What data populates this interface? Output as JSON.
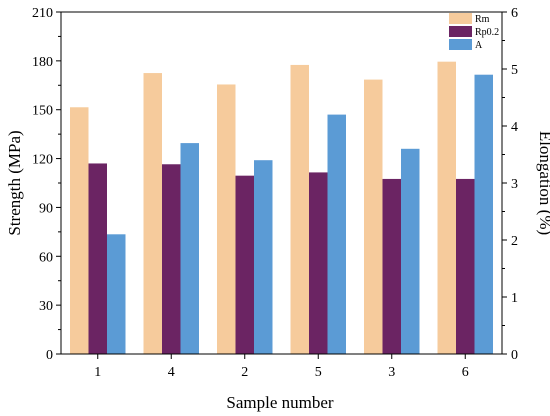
{
  "chart_data": {
    "type": "bar",
    "categories": [
      "1",
      "4",
      "2",
      "5",
      "3",
      "6"
    ],
    "series": [
      {
        "name": "Rm",
        "axis": "left",
        "color": "#F6CB9C",
        "values": [
          151.5,
          172.5,
          165.5,
          177.5,
          168.5,
          179.5
        ]
      },
      {
        "name": "Rp0.2",
        "axis": "left",
        "color": "#6B2463",
        "values": [
          117,
          116.5,
          109.5,
          111.5,
          107.5,
          107.5
        ]
      },
      {
        "name": "A",
        "axis": "right",
        "color": "#5B9BD5",
        "values": [
          2.1,
          3.7,
          3.4,
          4.2,
          3.6,
          4.9
        ]
      }
    ],
    "xlabel": "Sample number",
    "ylabel": "Strength (MPa)",
    "y2label": "Elongation (%)",
    "ylim": [
      0,
      210
    ],
    "yticks": [
      "0",
      "30",
      "60",
      "90",
      "120",
      "150",
      "180",
      "210"
    ],
    "y2lim": [
      0,
      6
    ],
    "y2ticks": [
      "0",
      "1",
      "2",
      "3",
      "4",
      "5",
      "6"
    ],
    "grid": false,
    "legend_position": "top-right"
  }
}
